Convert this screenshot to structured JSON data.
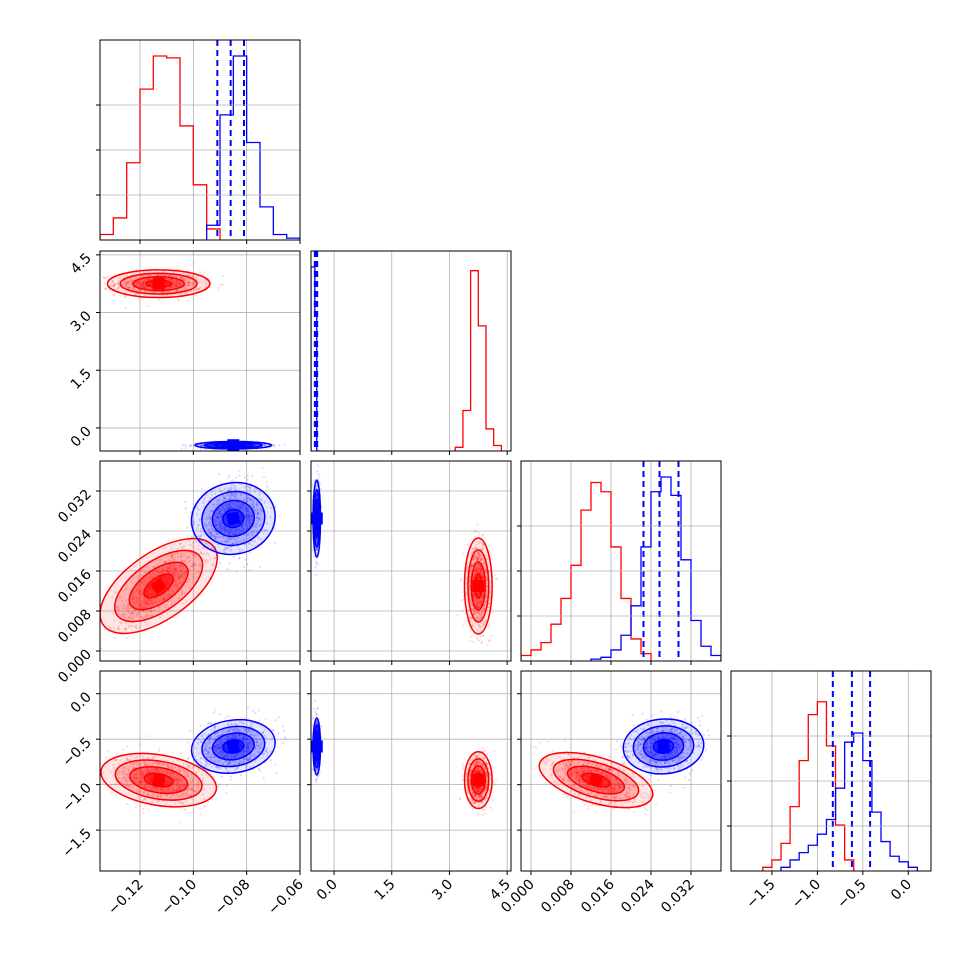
{
  "chart_data": {
    "type": "corner",
    "series_colors": {
      "red": "#ff0000",
      "blue": "#0000ff"
    },
    "variables": [
      {
        "range": [
          -0.135,
          -0.06
        ],
        "ticks": [
          "-0.12",
          "-0.10",
          "-0.08",
          "-0.06"
        ],
        "tick_values": [
          -0.12,
          -0.1,
          -0.08,
          -0.06
        ]
      },
      {
        "range": [
          -0.6,
          4.6
        ],
        "ticks": [
          "0.0",
          "1.5",
          "3.0",
          "4.5"
        ],
        "tick_values": [
          0.0,
          1.5,
          3.0,
          4.5
        ]
      },
      {
        "range": [
          -0.002,
          0.038
        ],
        "ticks": [
          "0.000",
          "0.008",
          "0.016",
          "0.024",
          "0.032"
        ],
        "tick_values": [
          0.0,
          0.008,
          0.016,
          0.024,
          0.032
        ]
      },
      {
        "range": [
          -1.95,
          0.25
        ],
        "ticks": [
          "-1.5",
          "-1.0",
          "-0.5",
          "0.0"
        ],
        "tick_values": [
          -1.5,
          -1.0,
          -0.5,
          0.0
        ]
      }
    ],
    "tick_labels": {
      "x0": [
        "−0.12",
        "−0.10",
        "−0.08",
        "−0.06"
      ],
      "x1": [
        "0.0",
        "1.5",
        "3.0",
        "4.5"
      ],
      "x2": [
        "0.000",
        "0.008",
        "0.016",
        "0.024",
        "0.032"
      ],
      "x3": [
        "−1.5",
        "−1.0",
        "−0.5",
        "0.0"
      ],
      "y1": [
        "0.0",
        "1.5",
        "3.0",
        "4.5"
      ],
      "y2": [
        "0.000",
        "0.008",
        "0.016",
        "0.024",
        "0.032"
      ],
      "y3": [
        "−1.5",
        "−1.0",
        "−0.5",
        "0.0"
      ]
    },
    "red": {
      "means": [
        -0.113,
        3.75,
        0.013,
        -0.95
      ],
      "sds": [
        0.008,
        0.15,
        0.004,
        0.13
      ],
      "hist": [
        {
          "edges": [
            -0.135,
            -0.13,
            -0.125,
            -0.12,
            -0.115,
            -0.11,
            -0.105,
            -0.1,
            -0.095,
            -0.09
          ],
          "counts": [
            0.03,
            0.12,
            0.42,
            0.82,
            1.0,
            0.99,
            0.62,
            0.3,
            0.06
          ]
        },
        {
          "edges": [
            3.15,
            3.35,
            3.55,
            3.75,
            3.95,
            4.15,
            4.35
          ],
          "counts": [
            0.02,
            0.22,
            0.98,
            0.68,
            0.12,
            0.03
          ]
        },
        {
          "edges": [
            -0.002,
            0.0,
            0.002,
            0.004,
            0.006,
            0.008,
            0.01,
            0.012,
            0.014,
            0.016,
            0.018,
            0.02,
            0.022,
            0.024
          ],
          "counts": [
            0.03,
            0.06,
            0.1,
            0.2,
            0.34,
            0.52,
            0.82,
            0.97,
            0.92,
            0.62,
            0.34,
            0.12,
            0.04
          ]
        },
        {
          "edges": [
            -1.6,
            -1.5,
            -1.4,
            -1.3,
            -1.2,
            -1.1,
            -1.0,
            -0.9,
            -0.8,
            -0.7,
            -0.6
          ],
          "counts": [
            0.02,
            0.06,
            0.15,
            0.35,
            0.6,
            0.85,
            0.92,
            0.68,
            0.25,
            0.06
          ]
        }
      ]
    },
    "blue": {
      "means": [
        -0.085,
        -0.45,
        0.0265,
        -0.58
      ],
      "sds": [
        0.006,
        0.04,
        0.0032,
        0.13
      ],
      "quantiles": [
        [
          -0.091,
          -0.086,
          -0.081
        ],
        [
          -0.5,
          -0.47,
          -0.44
        ],
        [
          0.0225,
          0.0257,
          0.0295
        ],
        [
          -0.83,
          -0.62,
          -0.42
        ]
      ],
      "hist": [
        {
          "edges": [
            -0.095,
            -0.09,
            -0.085,
            -0.08,
            -0.075,
            -0.07,
            -0.065,
            -0.06
          ],
          "counts": [
            0.08,
            0.68,
            1.0,
            0.53,
            0.18,
            0.03,
            0.01
          ]
        },
        {
          "edges": [
            -0.6,
            -0.5,
            -0.45,
            -0.35
          ],
          "counts": [
            1.0,
            0.75,
            0.0
          ]
        },
        {
          "edges": [
            0.012,
            0.014,
            0.016,
            0.018,
            0.02,
            0.022,
            0.024,
            0.026,
            0.028,
            0.03,
            0.032,
            0.034,
            0.036,
            0.038
          ],
          "counts": [
            0.01,
            0.02,
            0.06,
            0.14,
            0.3,
            0.62,
            0.92,
            1.0,
            0.9,
            0.55,
            0.22,
            0.08,
            0.03
          ]
        },
        {
          "edges": [
            -1.4,
            -1.3,
            -1.2,
            -1.1,
            -1.0,
            -0.9,
            -0.8,
            -0.7,
            -0.6,
            -0.5,
            -0.4,
            -0.3,
            -0.2,
            -0.1,
            0.0,
            0.1
          ],
          "counts": [
            0.02,
            0.06,
            0.1,
            0.14,
            0.2,
            0.28,
            0.45,
            0.7,
            0.75,
            0.6,
            0.32,
            0.16,
            0.08,
            0.05,
            0.02
          ]
        }
      ]
    },
    "red_corr": {
      "0-1": 0.0,
      "0-2": 0.75,
      "0-3": -0.3,
      "1-2": 0.0,
      "1-3": 0.0,
      "2-3": -0.5
    },
    "blue_corr": {
      "0-1": 0.0,
      "0-2": 0.2,
      "0-3": 0.2,
      "1-2": 0.0,
      "1-3": 0.0,
      "2-3": 0.1
    },
    "grid": true
  }
}
